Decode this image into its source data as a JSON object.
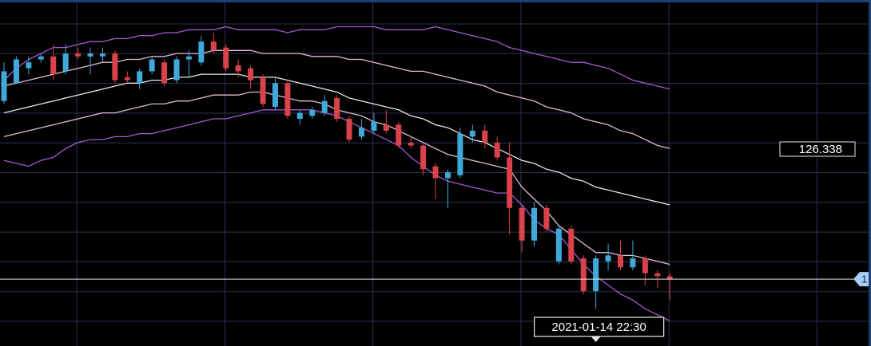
{
  "chart_data": {
    "type": "candlestick",
    "categories": [
      null,
      null,
      null,
      null,
      null,
      null,
      null,
      null,
      null,
      null,
      null,
      null,
      null,
      null,
      null,
      null,
      null,
      null,
      null,
      null,
      null,
      null,
      null,
      null,
      null,
      null,
      null,
      null,
      null,
      null,
      null,
      null,
      null,
      null,
      null,
      null,
      null,
      null,
      null,
      null,
      null,
      null,
      null,
      null,
      null,
      null,
      null,
      null,
      "2021-01-14 22:30",
      null,
      null,
      null,
      null,
      null,
      null
    ],
    "open": [
      126.5,
      126.56,
      126.61,
      126.64,
      126.65,
      126.6,
      126.66,
      126.65,
      126.65,
      126.66,
      126.58,
      126.56,
      126.6,
      126.63,
      126.57,
      126.64,
      126.63,
      126.7,
      126.68,
      126.62,
      126.61,
      126.58,
      126.48,
      126.56,
      126.44,
      126.45,
      126.46,
      126.51,
      126.44,
      126.38,
      126.4,
      126.42,
      126.42,
      126.36,
      126.35,
      126.28,
      126.24,
      126.25,
      126.38,
      126.4,
      126.36,
      126.31,
      126.14,
      126.03,
      126.14,
      125.96,
      126.07,
      125.97,
      125.86,
      125.96,
      125.98,
      125.94,
      125.97,
      125.92,
      125.91
    ],
    "high": [
      126.63,
      126.65,
      126.65,
      126.66,
      126.69,
      126.69,
      126.68,
      126.68,
      126.68,
      126.67,
      126.6,
      126.61,
      126.65,
      126.64,
      126.65,
      126.67,
      126.72,
      126.73,
      126.69,
      126.64,
      126.62,
      126.59,
      126.58,
      126.57,
      126.47,
      126.48,
      126.52,
      126.52,
      126.45,
      126.44,
      126.46,
      126.47,
      126.43,
      126.38,
      126.36,
      126.29,
      126.27,
      126.41,
      126.42,
      126.42,
      126.38,
      126.36,
      126.15,
      126.16,
      126.15,
      126.08,
      126.08,
      125.98,
      125.98,
      126.02,
      126.03,
      126.03,
      125.98,
      125.93,
      125.92
    ],
    "low": [
      126.49,
      126.56,
      126.59,
      126.63,
      126.57,
      126.59,
      126.64,
      126.59,
      126.63,
      126.56,
      126.56,
      126.54,
      126.59,
      126.55,
      126.56,
      126.58,
      126.62,
      126.66,
      126.6,
      126.58,
      126.54,
      126.48,
      126.47,
      126.44,
      126.42,
      126.44,
      126.45,
      126.43,
      126.36,
      126.37,
      126.39,
      126.39,
      126.34,
      126.34,
      126.25,
      126.17,
      126.14,
      126.24,
      126.36,
      126.34,
      126.3,
      126.05,
      125.99,
      126.01,
      126.06,
      125.95,
      125.95,
      125.85,
      125.8,
      125.93,
      125.93,
      125.93,
      125.88,
      125.87,
      125.83
    ],
    "close": [
      126.6,
      126.64,
      126.63,
      126.65,
      126.59,
      126.66,
      126.65,
      126.66,
      126.66,
      126.57,
      126.57,
      126.6,
      126.64,
      126.56,
      126.64,
      126.65,
      126.7,
      126.67,
      126.61,
      126.6,
      126.57,
      126.49,
      126.56,
      126.45,
      126.46,
      126.47,
      126.5,
      126.44,
      126.37,
      126.41,
      126.43,
      126.4,
      126.35,
      126.35,
      126.27,
      126.24,
      126.26,
      126.39,
      126.4,
      126.36,
      126.31,
      126.14,
      126.03,
      126.14,
      126.07,
      126.07,
      125.96,
      125.86,
      125.97,
      125.98,
      125.94,
      125.97,
      125.92,
      125.91,
      125.9
    ],
    "up_color": "#3fa9d9",
    "down_color": "#d9424a",
    "bands": [
      {
        "color": "#a659d1",
        "values": [
          126.57,
          126.61,
          126.64,
          126.66,
          126.68,
          126.68,
          126.69,
          126.7,
          126.7,
          126.71,
          126.71,
          126.72,
          126.72,
          126.73,
          126.73,
          126.74,
          126.74,
          126.74,
          126.75,
          126.74,
          126.74,
          126.74,
          126.74,
          126.73,
          126.74,
          126.74,
          126.74,
          126.75,
          126.75,
          126.75,
          126.75,
          126.74,
          126.74,
          126.74,
          126.74,
          126.75,
          126.74,
          126.73,
          126.72,
          126.71,
          126.7,
          126.68,
          126.67,
          126.66,
          126.65,
          126.64,
          126.63,
          126.63,
          126.62,
          126.61,
          126.59,
          126.57,
          126.56,
          126.55,
          126.54
        ]
      },
      {
        "color": "#e0bcd8",
        "values": [
          126.55,
          126.56,
          126.57,
          126.58,
          126.59,
          126.6,
          126.61,
          126.62,
          126.63,
          126.63,
          126.64,
          126.64,
          126.65,
          126.65,
          126.66,
          126.66,
          126.66,
          126.67,
          126.67,
          126.67,
          126.67,
          126.66,
          126.66,
          126.66,
          126.66,
          126.65,
          126.65,
          126.65,
          126.64,
          126.64,
          126.63,
          126.62,
          126.61,
          126.6,
          126.6,
          126.59,
          126.58,
          126.57,
          126.56,
          126.55,
          126.53,
          126.52,
          126.51,
          126.5,
          126.48,
          126.47,
          126.46,
          126.44,
          126.43,
          126.42,
          126.4,
          126.39,
          126.37,
          126.35,
          126.34
        ]
      },
      {
        "color": "#e8e8e8",
        "values": [
          126.46,
          126.47,
          126.48,
          126.49,
          126.5,
          126.51,
          126.52,
          126.53,
          126.54,
          126.55,
          126.56,
          126.56,
          126.57,
          126.57,
          126.58,
          126.58,
          126.59,
          126.59,
          126.59,
          126.59,
          126.58,
          126.58,
          126.58,
          126.57,
          126.56,
          126.55,
          126.54,
          126.53,
          126.51,
          126.5,
          126.49,
          126.48,
          126.47,
          126.45,
          126.44,
          126.42,
          126.41,
          126.39,
          126.37,
          126.36,
          126.34,
          126.32,
          126.3,
          126.29,
          126.27,
          126.26,
          126.24,
          126.23,
          126.21,
          126.2,
          126.19,
          126.18,
          126.17,
          126.16,
          126.15
        ]
      },
      {
        "color": "#e0bcd8",
        "values": [
          126.38,
          126.39,
          126.4,
          126.41,
          126.42,
          126.43,
          126.44,
          126.45,
          126.46,
          126.46,
          126.47,
          126.48,
          126.49,
          126.49,
          126.5,
          126.5,
          126.51,
          126.52,
          126.52,
          126.52,
          126.53,
          126.53,
          126.52,
          126.51,
          126.5,
          126.5,
          126.49,
          126.47,
          126.46,
          126.45,
          126.43,
          126.42,
          126.4,
          126.38,
          126.36,
          126.34,
          126.32,
          126.31,
          126.3,
          126.29,
          126.28,
          126.27,
          126.21,
          126.17,
          126.13,
          126.08,
          126.05,
          126.02,
          125.99,
          125.99,
          125.98,
          125.98,
          125.97,
          125.96,
          125.95
        ]
      },
      {
        "color": "#a659d1",
        "values": [
          126.3,
          126.29,
          126.28,
          126.3,
          126.31,
          126.34,
          126.36,
          126.37,
          126.37,
          126.38,
          126.38,
          126.39,
          126.39,
          126.4,
          126.41,
          126.42,
          126.43,
          126.44,
          126.44,
          126.45,
          126.46,
          126.47,
          126.47,
          126.47,
          126.47,
          126.47,
          126.46,
          126.45,
          126.43,
          126.41,
          126.39,
          126.37,
          126.35,
          126.31,
          126.28,
          126.25,
          126.23,
          126.22,
          126.21,
          126.2,
          126.19,
          126.19,
          126.15,
          126.1,
          126.07,
          126.05,
          126.0,
          125.95,
          125.91,
          125.88,
          125.85,
          125.83,
          125.8,
          125.78,
          125.76
        ]
      }
    ],
    "ylim": [
      125.675,
      126.84
    ],
    "last_price_label": {
      "value": 126.338,
      "label": "126.338"
    },
    "crosshair": {
      "value": 125.9,
      "label": "1"
    }
  }
}
